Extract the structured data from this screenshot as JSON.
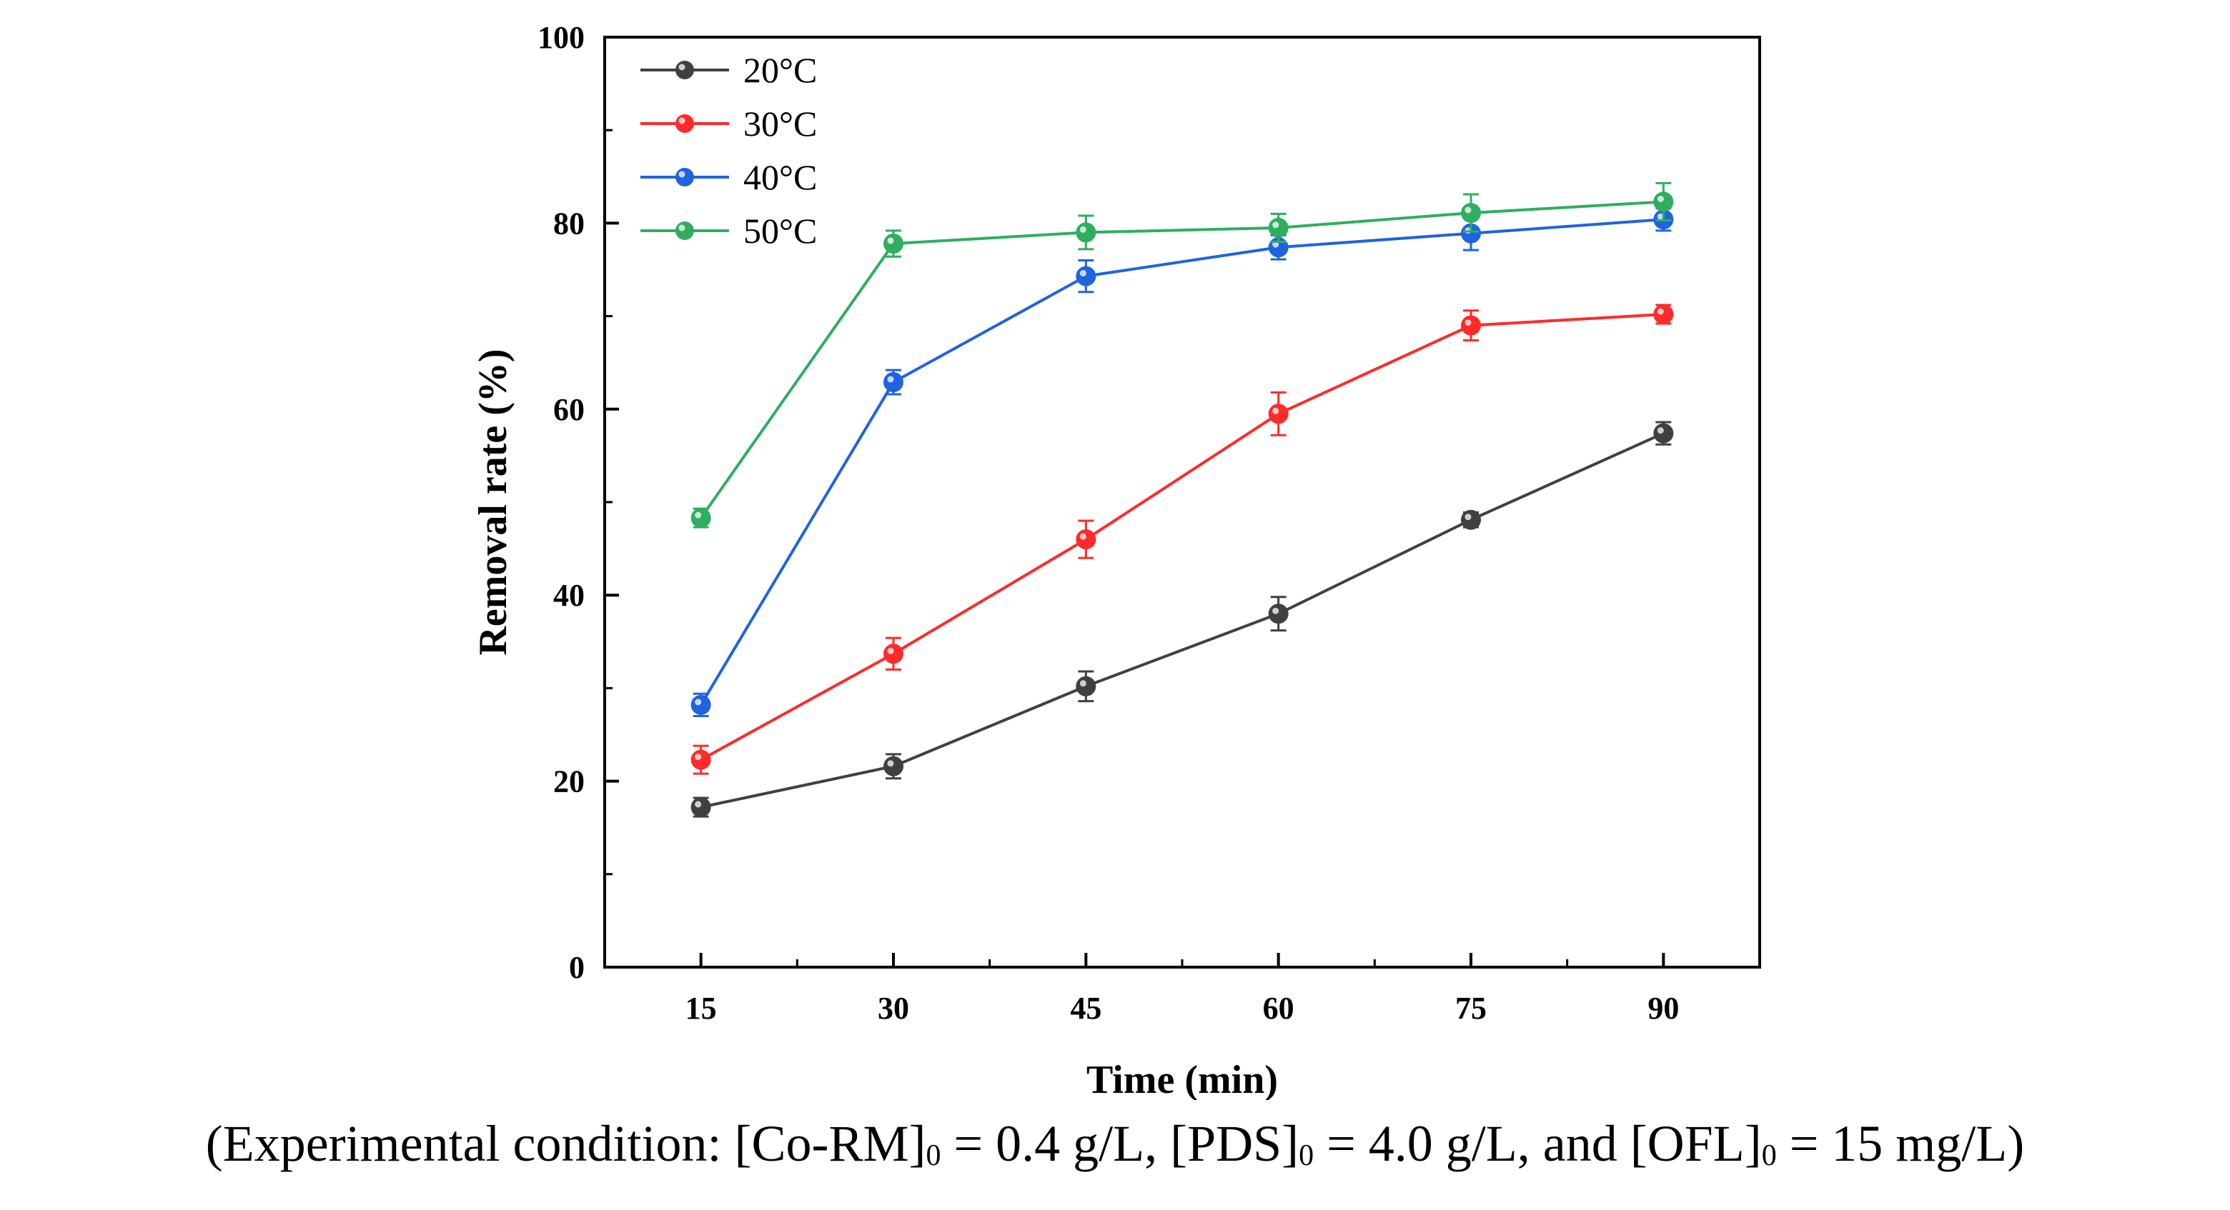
{
  "chart_data": {
    "type": "line",
    "title": "",
    "xlabel": "Time (min)",
    "ylabel": "Removal rate (%)",
    "x": [
      15,
      30,
      45,
      60,
      75,
      90
    ],
    "xlim": [
      7.5,
      97.5
    ],
    "ylim": [
      0,
      100
    ],
    "xticks": [
      15,
      30,
      45,
      60,
      75,
      90
    ],
    "yticks": [
      0,
      20,
      40,
      60,
      80,
      100
    ],
    "grid": false,
    "legend_position": "top-left",
    "series": [
      {
        "name": "20°C",
        "color": "#404040",
        "values": [
          17.2,
          21.6,
          30.2,
          38.0,
          48.1,
          57.4
        ],
        "errors": [
          1.0,
          1.3,
          1.6,
          1.8,
          0.8,
          1.2
        ]
      },
      {
        "name": "30°C",
        "color": "#ff2a2a",
        "values": [
          22.3,
          33.7,
          46.0,
          59.5,
          69.0,
          70.2
        ],
        "errors": [
          1.5,
          1.7,
          2.0,
          2.3,
          1.6,
          1.0
        ]
      },
      {
        "name": "40°C",
        "color": "#1f63e0",
        "values": [
          28.2,
          62.9,
          74.3,
          77.4,
          78.9,
          80.4
        ],
        "errors": [
          1.2,
          1.3,
          1.7,
          1.3,
          1.8,
          1.2
        ]
      },
      {
        "name": "50°C",
        "color": "#2fae60",
        "values": [
          48.3,
          77.8,
          79.0,
          79.5,
          81.1,
          82.3
        ],
        "errors": [
          1.0,
          1.4,
          1.8,
          1.5,
          2.0,
          2.0
        ]
      }
    ]
  },
  "caption": {
    "prefix": "(Experimental condition: [Co-RM]",
    "sub1": "0",
    "mid1": " = 0.4 g/L, [PDS]",
    "sub2": "0",
    "mid2": " = 4.0 g/L, and [OFL]",
    "sub3": "0",
    "suffix": " = 15 mg/L)"
  }
}
